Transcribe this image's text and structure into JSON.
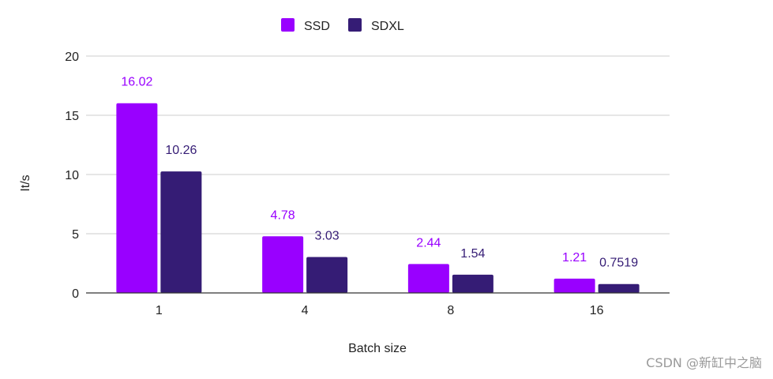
{
  "chart_data": {
    "type": "bar",
    "categories": [
      "1",
      "4",
      "8",
      "16"
    ],
    "series": [
      {
        "name": "SSD",
        "values": [
          16.02,
          4.78,
          2.44,
          1.21
        ],
        "labels": [
          "16.02",
          "4.78",
          "2.44",
          "1.21"
        ],
        "color": "#9900ff"
      },
      {
        "name": "SDXL",
        "values": [
          10.26,
          3.03,
          1.54,
          0.7519
        ],
        "labels": [
          "10.26",
          "3.03",
          "1.54",
          "0.7519"
        ],
        "color": "#351c75"
      }
    ],
    "xlabel": "Batch size",
    "ylabel": "It/s",
    "ylim": [
      0,
      20
    ],
    "yticks": [
      "0",
      "5",
      "10",
      "15",
      "20"
    ],
    "grid": true,
    "legend_position": "top-center"
  },
  "watermark": "CSDN @新缸中之脑"
}
